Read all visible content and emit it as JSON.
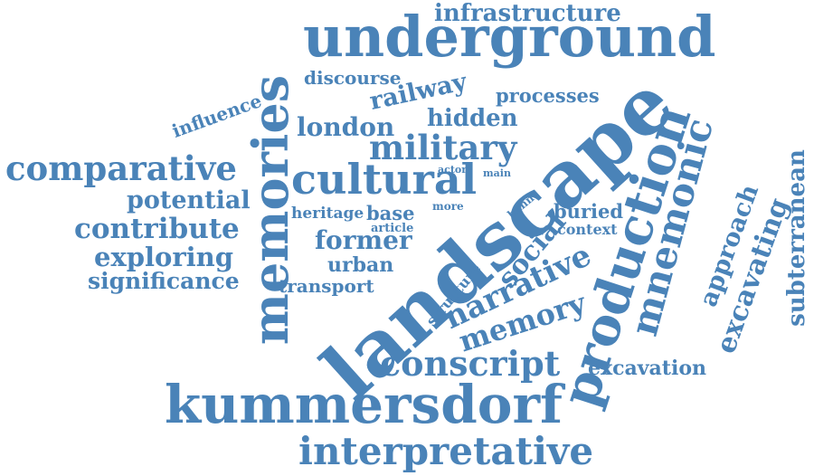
{
  "color": "#4a83b8",
  "words": [
    {
      "text": "landscape"
    },
    {
      "text": "underground"
    },
    {
      "text": "production"
    },
    {
      "text": "memories"
    },
    {
      "text": "kummersdorf"
    },
    {
      "text": "interpretative"
    },
    {
      "text": "cultural"
    },
    {
      "text": "comparative"
    },
    {
      "text": "mnemonic"
    },
    {
      "text": "military"
    },
    {
      "text": "conscript"
    },
    {
      "text": "narrative"
    },
    {
      "text": "memory"
    },
    {
      "text": "infrastructure"
    },
    {
      "text": "railway"
    },
    {
      "text": "discourse"
    },
    {
      "text": "processes"
    },
    {
      "text": "hidden"
    },
    {
      "text": "london"
    },
    {
      "text": "influence"
    },
    {
      "text": "potential"
    },
    {
      "text": "contribute"
    },
    {
      "text": "exploring"
    },
    {
      "text": "significance"
    },
    {
      "text": "transport"
    },
    {
      "text": "urban"
    },
    {
      "text": "former"
    },
    {
      "text": "heritage"
    },
    {
      "text": "base"
    },
    {
      "text": "article"
    },
    {
      "text": "more"
    },
    {
      "text": "actor"
    },
    {
      "text": "main"
    },
    {
      "text": "bahn"
    },
    {
      "text": "buried"
    },
    {
      "text": "context"
    },
    {
      "text": "social"
    },
    {
      "text": "structure"
    },
    {
      "text": "approach"
    },
    {
      "text": "excavating"
    },
    {
      "text": "subterranean"
    },
    {
      "text": "excavation"
    }
  ]
}
